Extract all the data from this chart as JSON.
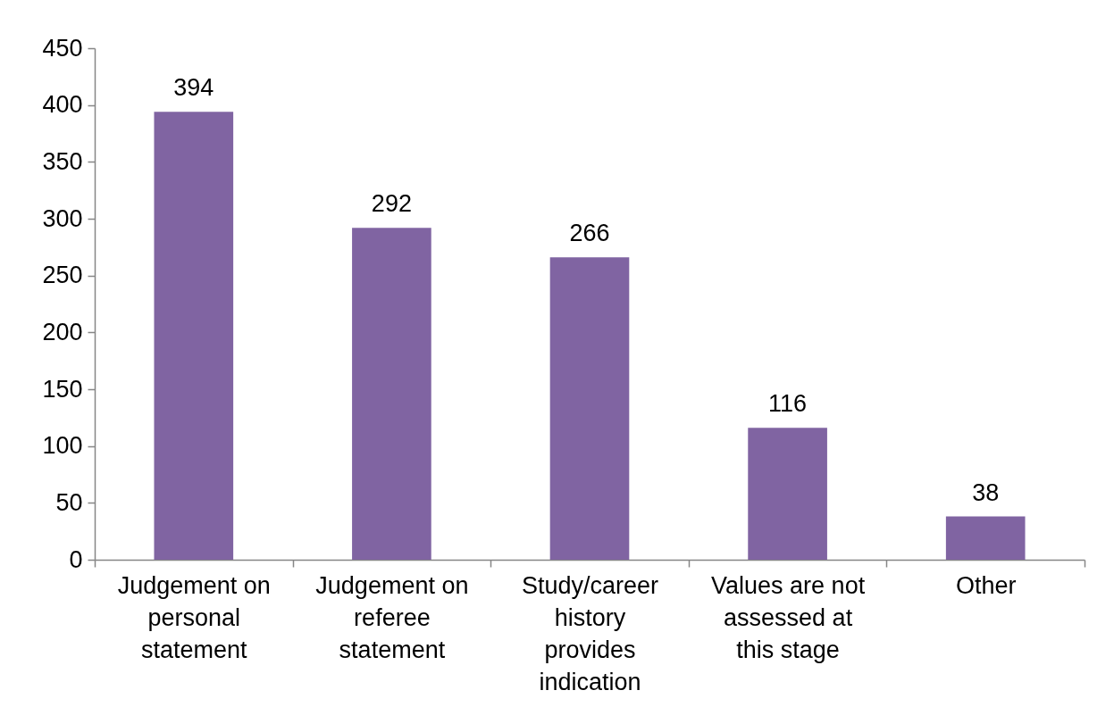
{
  "chart_data": {
    "type": "bar",
    "categories": [
      "Judgement on personal statement",
      "Judgement on referee statement",
      "Study/career history provides indication",
      "Values are not assessed at this stage",
      "Other"
    ],
    "values": [
      394,
      292,
      266,
      116,
      38
    ],
    "color": "#8064a2",
    "ylim": [
      0,
      450
    ],
    "yticks": [
      0,
      50,
      100,
      150,
      200,
      250,
      300,
      350,
      400,
      450
    ],
    "data_labels": true
  }
}
